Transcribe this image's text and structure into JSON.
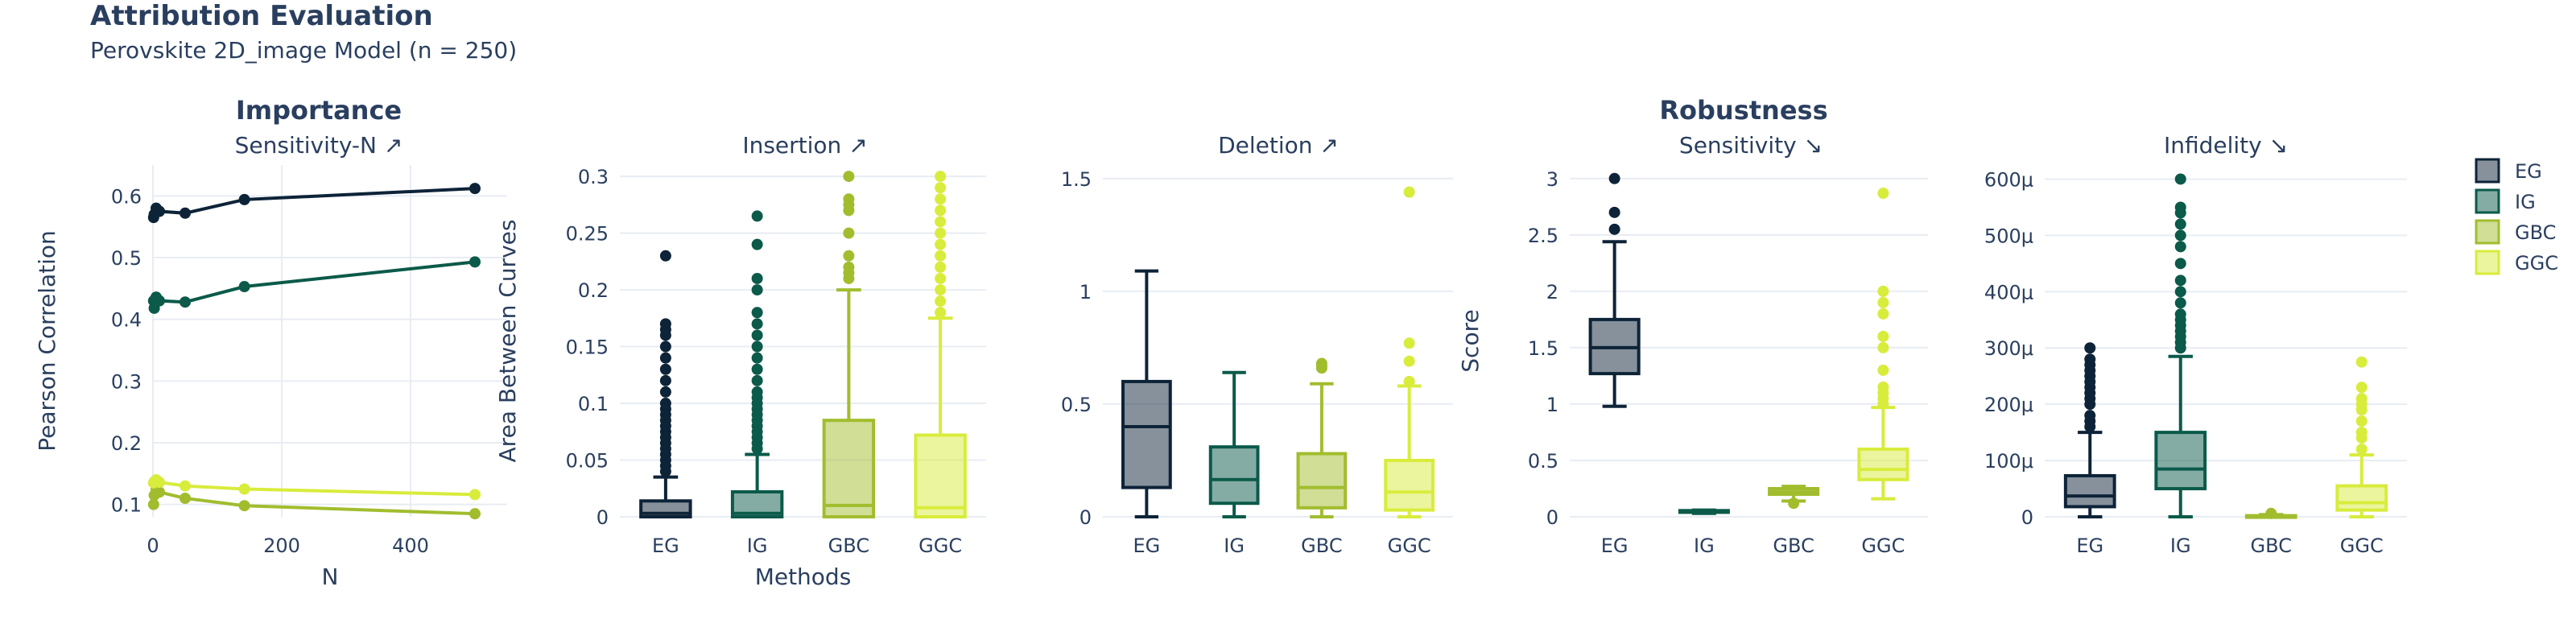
{
  "header": {
    "title": "Attribution Evaluation",
    "subtitle": "Perovskite 2D_image Model (n = 250)"
  },
  "sections": [
    "Importance",
    "Robustness"
  ],
  "colors": {
    "EG": "#0d2338",
    "IG": "#0b5a4a",
    "GBC": "#a1bd2e",
    "GGC": "#d8ec3c"
  },
  "legend": [
    "EG",
    "IG",
    "GBC",
    "GGC"
  ],
  "chart_data": [
    {
      "type": "line",
      "title": "Sensitivity-N ↗",
      "xlabel": "N",
      "ylabel": "Pearson Correlation",
      "xlim": [
        0,
        550
      ],
      "ylim": [
        0.08,
        0.65
      ],
      "xticks": [
        "0",
        "200",
        "400"
      ],
      "yticks": [
        "0.1",
        "0.2",
        "0.3",
        "0.4",
        "0.5",
        "0.6"
      ],
      "grid": true,
      "series": [
        {
          "name": "EG",
          "x": [
            1,
            2,
            5,
            10,
            50,
            142,
            500
          ],
          "y": [
            0.565,
            0.57,
            0.58,
            0.575,
            0.572,
            0.594,
            0.612
          ]
        },
        {
          "name": "IG",
          "x": [
            1,
            2,
            5,
            10,
            50,
            142,
            500
          ],
          "y": [
            0.43,
            0.418,
            0.436,
            0.43,
            0.428,
            0.453,
            0.493
          ]
        },
        {
          "name": "GBC",
          "x": [
            1,
            2,
            5,
            10,
            50,
            142,
            500
          ],
          "y": [
            0.1,
            0.115,
            0.125,
            0.12,
            0.11,
            0.098,
            0.085
          ]
        },
        {
          "name": "GGC",
          "x": [
            1,
            2,
            5,
            10,
            50,
            142,
            500
          ],
          "y": [
            0.135,
            0.137,
            0.14,
            0.136,
            0.13,
            0.125,
            0.116
          ]
        }
      ]
    },
    {
      "type": "box",
      "title": "Insertion ↗",
      "xlabel": "Methods",
      "ylabel": "Area Between Curves",
      "categories": [
        "EG",
        "IG",
        "GBC",
        "GGC"
      ],
      "ylim": [
        0,
        0.31
      ],
      "yticks": [
        "0",
        "0.05",
        "0.1",
        "0.15",
        "0.2",
        "0.25",
        "0.3"
      ],
      "boxes": [
        {
          "name": "EG",
          "min": 0,
          "q1": 0,
          "median": 0.003,
          "q3": 0.014,
          "max": 0.035,
          "outliers": [
            0.04,
            0.045,
            0.05,
            0.055,
            0.06,
            0.065,
            0.07,
            0.075,
            0.08,
            0.085,
            0.09,
            0.095,
            0.1,
            0.11,
            0.12,
            0.13,
            0.14,
            0.15,
            0.16,
            0.165,
            0.17,
            0.23
          ]
        },
        {
          "name": "IG",
          "min": 0,
          "q1": 0,
          "median": 0.003,
          "q3": 0.022,
          "max": 0.055,
          "outliers": [
            0.06,
            0.065,
            0.07,
            0.075,
            0.08,
            0.085,
            0.09,
            0.095,
            0.1,
            0.105,
            0.11,
            0.12,
            0.13,
            0.14,
            0.15,
            0.16,
            0.17,
            0.18,
            0.2,
            0.21,
            0.24,
            0.265
          ]
        },
        {
          "name": "GBC",
          "min": 0,
          "q1": 0,
          "median": 0.01,
          "q3": 0.085,
          "max": 0.2,
          "outliers": [
            0.21,
            0.215,
            0.22,
            0.23,
            0.25,
            0.27,
            0.275,
            0.28,
            0.3
          ]
        },
        {
          "name": "GGC",
          "min": 0,
          "q1": 0,
          "median": 0.008,
          "q3": 0.072,
          "max": 0.175,
          "outliers": [
            0.18,
            0.19,
            0.2,
            0.21,
            0.22,
            0.23,
            0.24,
            0.25,
            0.26,
            0.27,
            0.28,
            0.29,
            0.3
          ]
        }
      ]
    },
    {
      "type": "box",
      "title": "Deletion ↗",
      "categories": [
        "EG",
        "IG",
        "GBC",
        "GGC"
      ],
      "ylim": [
        0,
        1.56
      ],
      "yticks": [
        "0",
        "0.5",
        "1",
        "1.5"
      ],
      "boxes": [
        {
          "name": "EG",
          "min": 0,
          "q1": 0.13,
          "median": 0.4,
          "q3": 0.6,
          "max": 1.09,
          "outliers": []
        },
        {
          "name": "IG",
          "min": 0,
          "q1": 0.06,
          "median": 0.165,
          "q3": 0.31,
          "max": 0.64,
          "outliers": []
        },
        {
          "name": "GBC",
          "min": 0,
          "q1": 0.04,
          "median": 0.13,
          "q3": 0.28,
          "max": 0.59,
          "outliers": [
            0.66,
            0.67,
            0.68
          ]
        },
        {
          "name": "GGC",
          "min": 0,
          "q1": 0.03,
          "median": 0.11,
          "q3": 0.25,
          "max": 0.58,
          "outliers": [
            0.6,
            0.69,
            0.77,
            1.44
          ]
        }
      ]
    },
    {
      "type": "box",
      "title": "Sensitivity ↘",
      "ylabel": "Score",
      "categories": [
        "EG",
        "IG",
        "GBC",
        "GGC"
      ],
      "ylim": [
        0,
        3.12
      ],
      "yticks": [
        "0",
        "0.5",
        "1",
        "1.5",
        "2",
        "2.5",
        "3"
      ],
      "boxes": [
        {
          "name": "EG",
          "min": 0.98,
          "q1": 1.27,
          "median": 1.5,
          "q3": 1.75,
          "max": 2.44,
          "outliers": [
            2.55,
            2.7,
            3.0
          ]
        },
        {
          "name": "IG",
          "min": 0.03,
          "q1": 0.04,
          "median": 0.05,
          "q3": 0.055,
          "max": 0.06,
          "outliers": []
        },
        {
          "name": "GBC",
          "min": 0.14,
          "q1": 0.2,
          "median": 0.22,
          "q3": 0.25,
          "max": 0.27,
          "outliers": [
            0.12
          ]
        },
        {
          "name": "GGC",
          "min": 0.16,
          "q1": 0.33,
          "median": 0.42,
          "q3": 0.6,
          "max": 0.97,
          "outliers": [
            1.0,
            1.05,
            1.1,
            1.15,
            1.3,
            1.5,
            1.6,
            1.8,
            1.9,
            2.0,
            2.87
          ]
        }
      ]
    },
    {
      "type": "box",
      "title": "Infidelity ↘",
      "categories": [
        "EG",
        "IG",
        "GBC",
        "GGC"
      ],
      "ylim": [
        0,
        0.000625
      ],
      "yticks": [
        "0",
        "100μ",
        "200μ",
        "300μ",
        "400μ",
        "500μ",
        "600μ"
      ],
      "boxes": [
        {
          "name": "EG",
          "min": 0,
          "q1": 1.8e-05,
          "median": 3.7e-05,
          "q3": 7.3e-05,
          "max": 0.00015,
          "outliers": [
            0.00016,
            0.00017,
            0.00018,
            0.0002,
            0.00021,
            0.00022,
            0.00023,
            0.00024,
            0.00025,
            0.00026,
            0.00027,
            0.00028,
            0.0003
          ]
        },
        {
          "name": "IG",
          "min": 0,
          "q1": 5e-05,
          "median": 8.5e-05,
          "q3": 0.00015,
          "max": 0.000285,
          "outliers": [
            0.0003,
            0.00031,
            0.00032,
            0.00033,
            0.00034,
            0.00035,
            0.00036,
            0.00038,
            0.0004,
            0.00042,
            0.00045,
            0.00048,
            0.0005,
            0.00052,
            0.00054,
            0.00055,
            0.0006
          ]
        },
        {
          "name": "GBC",
          "min": 0,
          "q1": 0,
          "median": 1e-06,
          "q3": 2e-06,
          "max": 4e-06,
          "outliers": [
            6e-06
          ]
        },
        {
          "name": "GGC",
          "min": 0,
          "q1": 1.2e-05,
          "median": 2.5e-05,
          "q3": 5.5e-05,
          "max": 0.00011,
          "outliers": [
            0.00012,
            0.00014,
            0.00015,
            0.00017,
            0.00019,
            0.0002,
            0.00021,
            0.00023,
            0.000275
          ]
        }
      ]
    }
  ]
}
